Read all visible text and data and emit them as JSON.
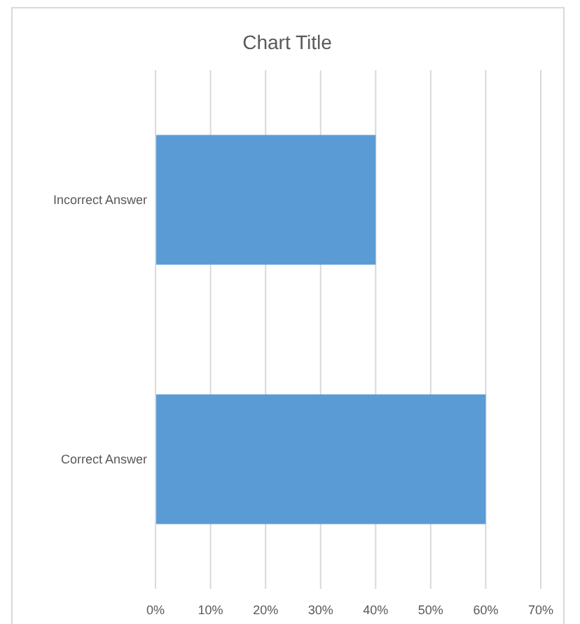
{
  "chart_data": {
    "type": "bar",
    "title": "Chart Title",
    "orientation": "horizontal",
    "categories": [
      "Incorrect Answer",
      "Correct Answer"
    ],
    "values": [
      40,
      60
    ],
    "color": "#5b9bd5",
    "xlim": [
      0,
      70
    ],
    "xticks": [
      {
        "value": 0,
        "label": "0%"
      },
      {
        "value": 10,
        "label": "10%"
      },
      {
        "value": 20,
        "label": "20%"
      },
      {
        "value": 30,
        "label": "30%"
      },
      {
        "value": 40,
        "label": "40%"
      },
      {
        "value": 50,
        "label": "50%"
      },
      {
        "value": 60,
        "label": "60%"
      },
      {
        "value": 70,
        "label": "70%"
      }
    ],
    "grid": "x"
  }
}
